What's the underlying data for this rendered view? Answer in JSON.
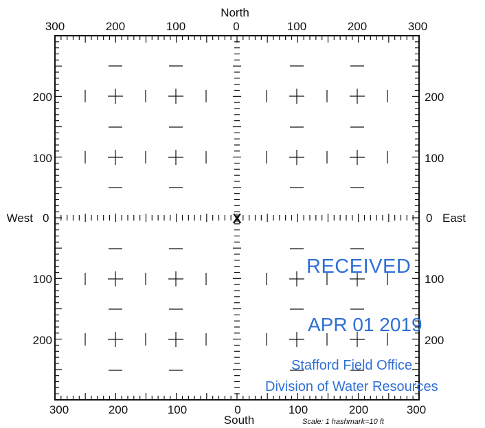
{
  "directions": {
    "north": "North",
    "south": "South",
    "west": "West",
    "east": "East"
  },
  "top_ticks": [
    "300",
    "200",
    "100",
    "0",
    "100",
    "200",
    "300"
  ],
  "bottom_ticks": [
    "300",
    "200",
    "100",
    "0",
    "100",
    "200",
    "300"
  ],
  "left_ticks": [
    "200",
    "100",
    "0",
    "100",
    "200"
  ],
  "right_ticks": [
    "200",
    "100",
    "0",
    "100",
    "200"
  ],
  "scale_note": "Scale:  1 hashmark=10 ft",
  "center_marker": "X",
  "stamp": {
    "received": "RECEIVED",
    "date": "APR 01 2019",
    "office": "Stafford Field Office",
    "division": "Division of Water Resources"
  },
  "colors": {
    "ink": "#111111",
    "stamp": "#2f6fd6"
  }
}
